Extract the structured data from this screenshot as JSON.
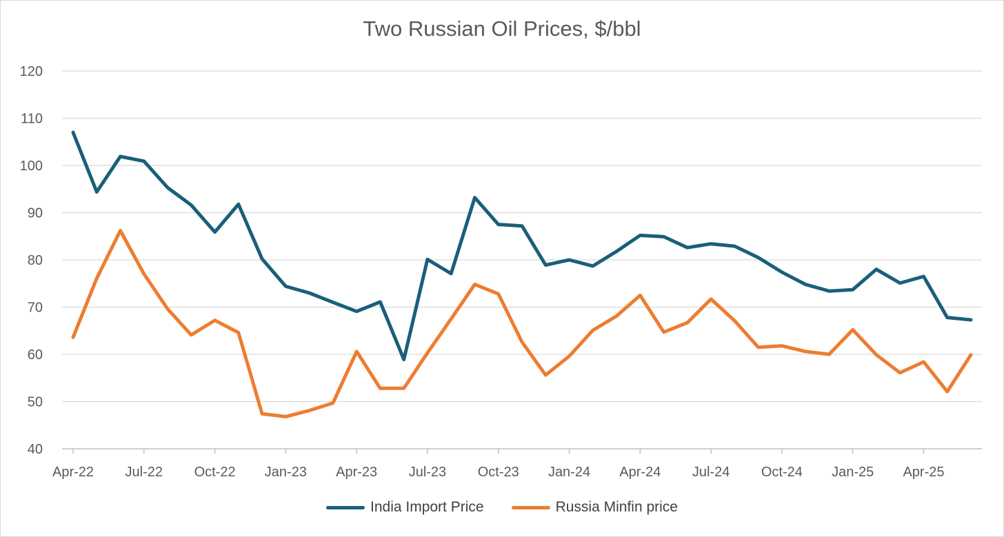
{
  "chart_data": {
    "type": "line",
    "title": "Two Russian Oil Prices, $/bbl",
    "xlabel": "",
    "ylabel": "",
    "ylim": [
      40,
      120
    ],
    "yticks": [
      40,
      50,
      60,
      70,
      80,
      90,
      100,
      110,
      120
    ],
    "grid": true,
    "legend_position": "bottom",
    "x": [
      "Apr-22",
      "May-22",
      "Jun-22",
      "Jul-22",
      "Aug-22",
      "Sep-22",
      "Oct-22",
      "Nov-22",
      "Dec-22",
      "Jan-23",
      "Feb-23",
      "Mar-23",
      "Apr-23",
      "May-23",
      "Jun-23",
      "Jul-23",
      "Aug-23",
      "Sep-23",
      "Oct-23",
      "Nov-23",
      "Dec-23",
      "Jan-24",
      "Feb-24",
      "Mar-24",
      "Apr-24",
      "May-24",
      "Jun-24",
      "Jul-24",
      "Aug-24",
      "Sep-24",
      "Oct-24",
      "Nov-24",
      "Dec-24",
      "Jan-25",
      "Feb-25",
      "Mar-25",
      "Apr-25",
      "May-25",
      "Jun-25"
    ],
    "xtick_labels": [
      "Apr-22",
      "Jul-22",
      "Oct-22",
      "Jan-23",
      "Apr-23",
      "Jul-23",
      "Oct-23",
      "Jan-24",
      "Apr-24",
      "Jul-24",
      "Oct-24",
      "Jan-25",
      "Apr-25"
    ],
    "series": [
      {
        "name": "India Import Price",
        "color": "#1a5f7a",
        "values": [
          107.0,
          94.4,
          101.9,
          100.9,
          95.3,
          91.6,
          85.9,
          91.8,
          80.2,
          74.4,
          73.0,
          71.0,
          69.1,
          71.1,
          58.9,
          80.1,
          77.1,
          93.2,
          87.5,
          87.2,
          78.9,
          80.0,
          78.7,
          81.8,
          85.2,
          84.9,
          82.6,
          83.4,
          82.9,
          80.5,
          77.4,
          74.8,
          73.4,
          73.7,
          78.0,
          75.1,
          76.5,
          67.8,
          67.3
        ]
      },
      {
        "name": "Russia Minfin price",
        "color": "#ed7d31",
        "values": [
          63.6,
          76.1,
          86.2,
          77.0,
          69.6,
          64.1,
          67.2,
          64.6,
          47.4,
          46.8,
          48.1,
          49.7,
          60.6,
          52.8,
          52.8,
          60.3,
          67.5,
          74.8,
          72.8,
          62.6,
          55.6,
          59.6,
          65.1,
          68.1,
          72.5,
          64.7,
          66.7,
          71.7,
          67.1,
          61.5,
          61.8,
          60.6,
          60.0,
          65.2,
          59.9,
          56.1,
          58.4,
          52.1,
          59.9
        ]
      }
    ]
  }
}
